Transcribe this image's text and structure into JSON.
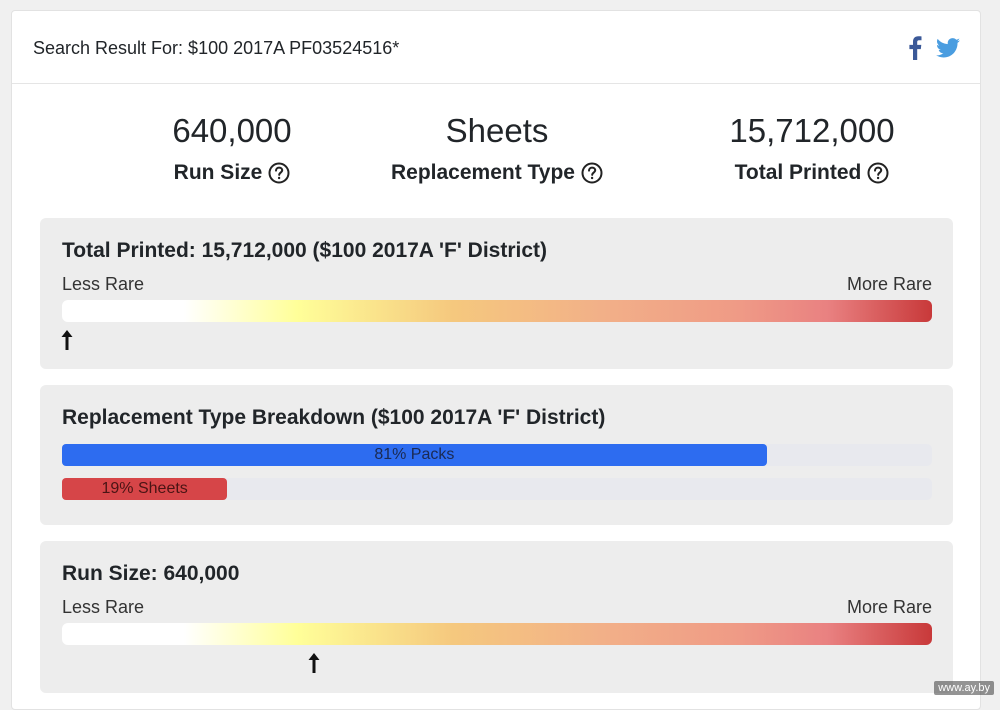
{
  "header": {
    "title": "Search Result For: $100 2017A PF03524516*",
    "share_icons": [
      "facebook-icon",
      "twitter-icon"
    ],
    "colors": {
      "facebook": "#3b5998",
      "twitter": "#4a9de0"
    }
  },
  "stats": [
    {
      "value": "640,000",
      "label": "Run Size"
    },
    {
      "value": "Sheets",
      "label": "Replacement Type"
    },
    {
      "value": "15,712,000",
      "label": "Total Printed"
    }
  ],
  "total_printed_panel": {
    "title": "Total Printed: 15,712,000 ($100 2017A 'F' District)",
    "less_rare": "Less Rare",
    "more_rare": "More Rare",
    "marker_percent": 0
  },
  "replacement_panel": {
    "title": "Replacement Type Breakdown ($100 2017A 'F' District)",
    "bars": [
      {
        "label": "81% Packs",
        "percent": 81,
        "color": "#2d6cf0"
      },
      {
        "label": "19% Sheets",
        "percent": 19,
        "color": "#d64548"
      }
    ]
  },
  "run_size_panel": {
    "title": "Run Size: 640,000",
    "less_rare": "Less Rare",
    "more_rare": "More Rare",
    "marker_percent": 29
  },
  "watermark": "www.ay.by"
}
